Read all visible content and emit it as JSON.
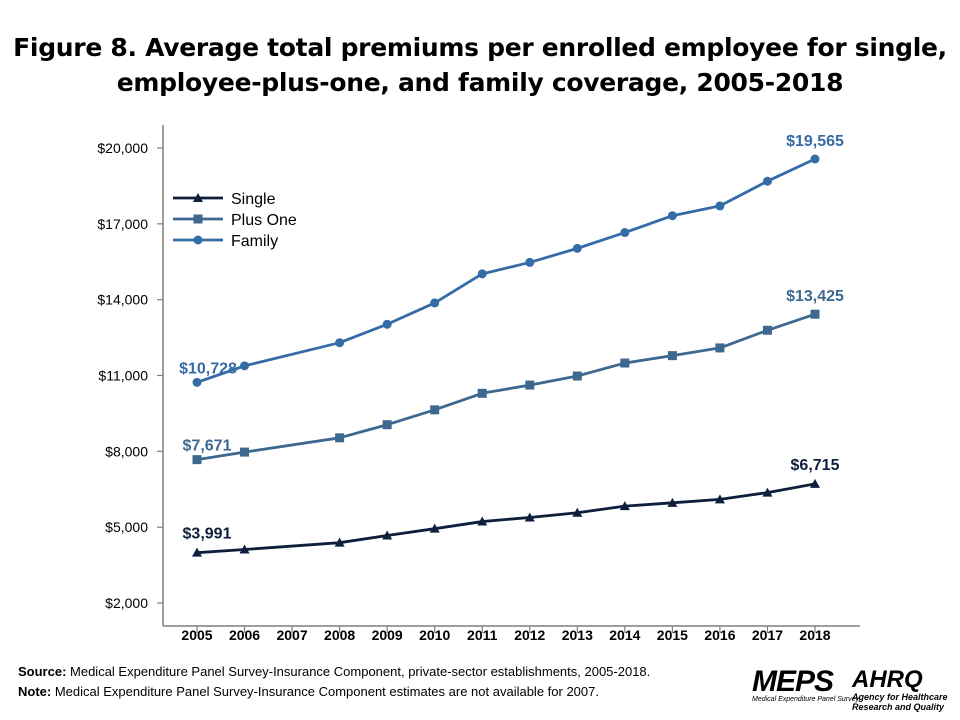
{
  "title_line1": "Figure 8. Average total premiums per enrolled employee for single,",
  "title_line2": "employee-plus-one, and family coverage, 2005-2018",
  "chart_data": {
    "type": "line",
    "title": "Figure 8. Average total premiums per enrolled employee for single, employee-plus-one, and family coverage, 2005-2018",
    "categories": [
      "2005",
      "2006",
      "2007",
      "2008",
      "2009",
      "2010",
      "2011",
      "2012",
      "2013",
      "2014",
      "2015",
      "2016",
      "2017",
      "2018"
    ],
    "ylim": [
      2000,
      20000
    ],
    "yticks": [
      2000,
      5000,
      8000,
      11000,
      14000,
      17000,
      20000
    ],
    "ytick_labels": [
      "$2,000",
      "$5,000",
      "$8,000",
      "$11,000",
      "$14,000",
      "$17,000",
      "$20,000"
    ],
    "grid": false,
    "legend_position": "top-left",
    "series": [
      {
        "name": "Single",
        "marker": "triangle",
        "color": "#0e1f3d",
        "values": [
          3991,
          4118,
          null,
          4386,
          4669,
          4940,
          5222,
          5384,
          5571,
          5832,
          5963,
          6101,
          6368,
          6715
        ],
        "labels": {
          "first": "$3,991",
          "last": "$6,715"
        }
      },
      {
        "name": "Plus One",
        "marker": "square",
        "color": "#3e6890",
        "values": [
          7671,
          7970,
          null,
          8535,
          9053,
          9642,
          10296,
          10621,
          10979,
          11493,
          11786,
          12091,
          12789,
          13425
        ],
        "labels": {
          "first": "$7,671",
          "last": "$13,425"
        }
      },
      {
        "name": "Family",
        "marker": "circle",
        "color": "#356ca5",
        "values": [
          10728,
          11381,
          null,
          12298,
          13027,
          13871,
          15022,
          15473,
          16029,
          16655,
          17322,
          17710,
          18687,
          19565
        ],
        "labels": {
          "first": "$10,728",
          "last": "$19,565"
        }
      }
    ]
  },
  "source_label": "Source:",
  "source_text": " Medical Expenditure Panel Survey-Insurance Component,  private-sector establishments, 2005-2018.",
  "note_label": "Note:",
  "note_text": " Medical Expenditure Panel Survey-Insurance Component  estimates are not available for 2007.",
  "logos": {
    "meps": "MEPS",
    "meps_sub": "Medical Expenditure Panel Survey",
    "ahrq": "AHRQ",
    "ahrq_sub1": "Agency for Healthcare",
    "ahrq_sub2": "Research and Quality"
  }
}
